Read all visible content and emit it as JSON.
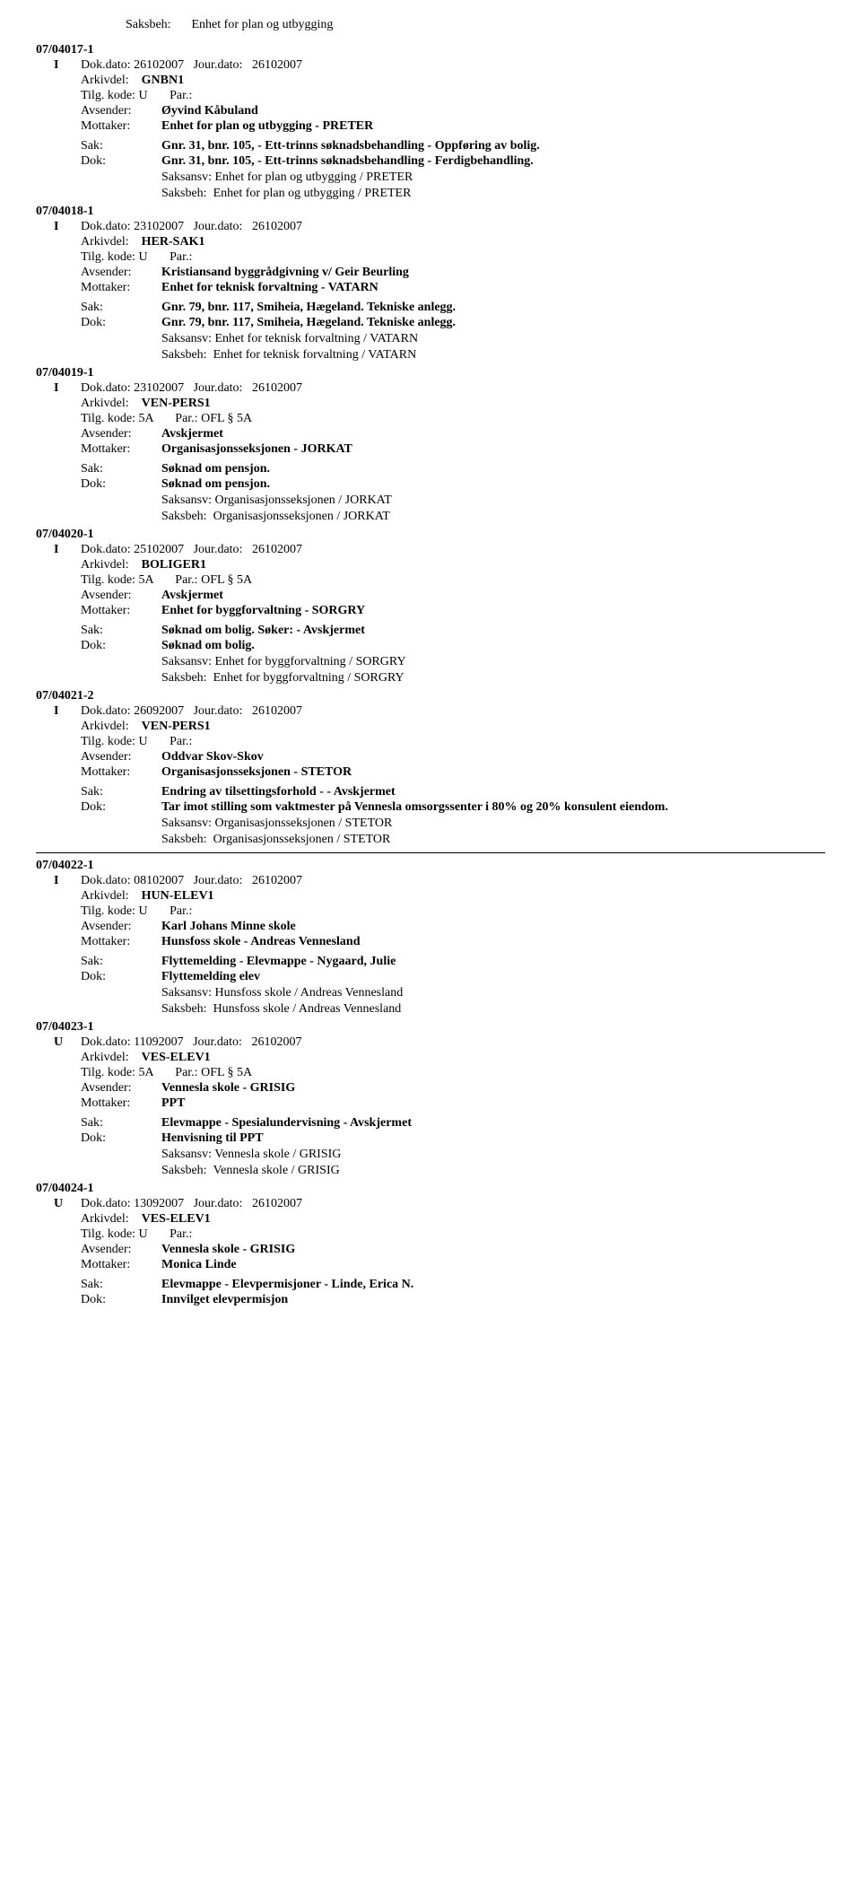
{
  "topHeader": {
    "saksbehLabel": "Saksbeh:",
    "saksbehValue": "Enhet for plan og utbygging"
  },
  "labels": {
    "dokdato": "Dok.dato:",
    "jourdato": "Jour.dato:",
    "arkivdel": "Arkivdel:",
    "tilgkode": "Tilg. kode:",
    "par": "Par.:",
    "avsender": "Avsender:",
    "mottaker": "Mottaker:",
    "sak": "Sak:",
    "dok": "Dok:",
    "saksansv": "Saksansv:",
    "saksbeh": "Saksbeh:"
  },
  "entries": [
    {
      "id": "07/04017-1",
      "type": "I",
      "dokdato": "26102007",
      "jourdato": "26102007",
      "arkivdel": "GNBN1",
      "tilgkode": "U",
      "par": "",
      "avsender": "Øyvind Kåbuland",
      "mottaker": "Enhet for plan og utbygging - PRETER",
      "sak": "Gnr. 31, bnr. 105, - Ett-trinns søknadsbehandling - Oppføring av bolig.",
      "dok": "Gnr. 31, bnr. 105, - Ett-trinns søknadsbehandling - Ferdigbehandling.",
      "saksansv": "Enhet for plan og utbygging / PRETER",
      "saksbeh": "Enhet for plan og utbygging / PRETER",
      "afterHr": false
    },
    {
      "id": "07/04018-1",
      "type": "I",
      "dokdato": "23102007",
      "jourdato": "26102007",
      "arkivdel": "HER-SAK1",
      "tilgkode": "U",
      "par": "",
      "avsender": "Kristiansand byggrådgivning v/ Geir Beurling",
      "mottaker": "Enhet for teknisk forvaltning - VATARN",
      "sak": "Gnr. 79, bnr. 117, Smiheia, Hægeland. Tekniske anlegg.",
      "dok": "Gnr. 79, bnr. 117, Smiheia, Hægeland. Tekniske anlegg.",
      "saksansv": "Enhet for teknisk forvaltning / VATARN",
      "saksbeh": "Enhet for teknisk forvaltning / VATARN",
      "afterHr": false
    },
    {
      "id": "07/04019-1",
      "type": "I",
      "dokdato": "23102007",
      "jourdato": "26102007",
      "arkivdel": "VEN-PERS1",
      "tilgkode": "5A",
      "par": "OFL § 5A",
      "avsender": "Avskjermet",
      "mottaker": "Organisasjonsseksjonen - JORKAT",
      "sak": "Søknad om pensjon.",
      "dok": "Søknad om pensjon.",
      "saksansv": "Organisasjonsseksjonen / JORKAT",
      "saksbeh": "Organisasjonsseksjonen / JORKAT",
      "afterHr": false
    },
    {
      "id": "07/04020-1",
      "type": "I",
      "dokdato": "25102007",
      "jourdato": "26102007",
      "arkivdel": "BOLIGER1",
      "tilgkode": "5A",
      "par": "OFL § 5A",
      "avsender": "Avskjermet",
      "mottaker": "Enhet for byggforvaltning - SORGRY",
      "sak": "Søknad om bolig. Søker: - Avskjermet",
      "dok": "Søknad om bolig.",
      "saksansv": "Enhet for byggforvaltning / SORGRY",
      "saksbeh": "Enhet for byggforvaltning / SORGRY",
      "afterHr": false
    },
    {
      "id": "07/04021-2",
      "type": "I",
      "dokdato": "26092007",
      "jourdato": "26102007",
      "arkivdel": "VEN-PERS1",
      "tilgkode": "U",
      "par": "",
      "avsender": "Oddvar Skov-Skov",
      "mottaker": "Organisasjonsseksjonen - STETOR",
      "sak": "Endring av tilsettingsforhold - - Avskjermet",
      "dok": "Tar imot stilling som vaktmester på Vennesla omsorgssenter i 80% og 20% konsulent eiendom.",
      "saksansv": "Organisasjonsseksjonen / STETOR",
      "saksbeh": "Organisasjonsseksjonen / STETOR",
      "afterHr": true
    },
    {
      "id": "07/04022-1",
      "type": "I",
      "dokdato": "08102007",
      "jourdato": "26102007",
      "arkivdel": "HUN-ELEV1",
      "tilgkode": "U",
      "par": "",
      "avsender": "Karl Johans Minne skole",
      "mottaker": "Hunsfoss skole - Andreas Vennesland",
      "sak": "Flyttemelding - Elevmappe - Nygaard, Julie",
      "dok": "Flyttemelding elev",
      "saksansv": "Hunsfoss skole / Andreas Vennesland",
      "saksbeh": "Hunsfoss skole / Andreas Vennesland",
      "afterHr": false
    },
    {
      "id": "07/04023-1",
      "type": "U",
      "dokdato": "11092007",
      "jourdato": "26102007",
      "arkivdel": "VES-ELEV1",
      "tilgkode": "5A",
      "par": "OFL § 5A",
      "avsender": "Vennesla skole - GRISIG",
      "mottaker": "PPT",
      "sak": "Elevmappe - Spesialundervisning - Avskjermet",
      "dok": "Henvisning til PPT",
      "saksansv": "Vennesla skole / GRISIG",
      "saksbeh": "Vennesla skole / GRISIG",
      "afterHr": false
    },
    {
      "id": "07/04024-1",
      "type": "U",
      "dokdato": "13092007",
      "jourdato": "26102007",
      "arkivdel": "VES-ELEV1",
      "tilgkode": "U",
      "par": "",
      "avsender": "Vennesla skole - GRISIG",
      "mottaker": "Monica Linde",
      "sak": "Elevmappe - Elevpermisjoner - Linde, Erica N.",
      "dok": "Innvilget elevpermisjon",
      "saksansv": "",
      "saksbeh": "",
      "afterHr": false
    }
  ]
}
